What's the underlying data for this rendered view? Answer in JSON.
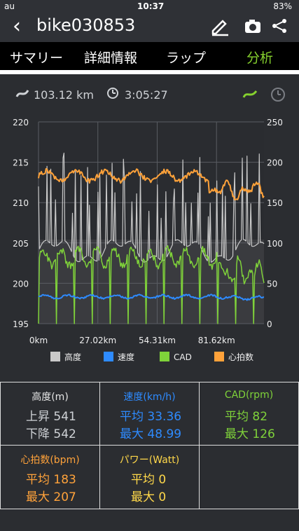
{
  "status": {
    "carrier": "au",
    "time": "10:37",
    "battery": "83%"
  },
  "header": {
    "title": "bike030853"
  },
  "tabs": [
    "サマリー",
    "詳細情報",
    "ラップ",
    "分析"
  ],
  "summary": {
    "distance": "103.12 km",
    "duration": "3:05:27"
  },
  "chart_data": {
    "type": "line",
    "y_left": {
      "min": 195,
      "max": 220,
      "ticks": [
        220,
        215,
        210,
        205,
        200,
        195
      ]
    },
    "y_right": {
      "min": 0,
      "max": 250,
      "ticks": [
        250,
        200,
        150,
        100,
        50,
        0
      ]
    },
    "x_ticks": [
      "0km",
      "27.02km",
      "54.31km",
      "81.62km"
    ],
    "legend": [
      {
        "name": "高度",
        "color": "#c9c9c9"
      },
      {
        "name": "速度",
        "color": "#2e8bff"
      },
      {
        "name": "CAD",
        "color": "#7fd23a"
      },
      {
        "name": "心拍数",
        "color": "#ffa23a"
      }
    ],
    "series_hints": {
      "heart_rate_level": 183,
      "speed_level": 33.36,
      "cadence_level": 82
    }
  },
  "stats": {
    "altitude": {
      "title": "高度(m)",
      "row1": "上昇 541",
      "row2": "下降 542"
    },
    "speed": {
      "title": "速度(km/h)",
      "row1": "平均 33.36",
      "row2": "最大 48.99"
    },
    "cad": {
      "title": "CAD(rpm)",
      "row1": "平均 82",
      "row2": "最大 126"
    },
    "hr": {
      "title": "心拍数(bpm)",
      "row1": "平均 183",
      "row2": "最大 207"
    },
    "power": {
      "title": "パワー(Watt)",
      "row1": "平均 0",
      "row2": "最大 0"
    }
  },
  "colors": {
    "accent": "#86d12e",
    "speed": "#2e8bff",
    "cad": "#7fd23a",
    "hr": "#ffa23a",
    "power": "#ffd84a"
  }
}
